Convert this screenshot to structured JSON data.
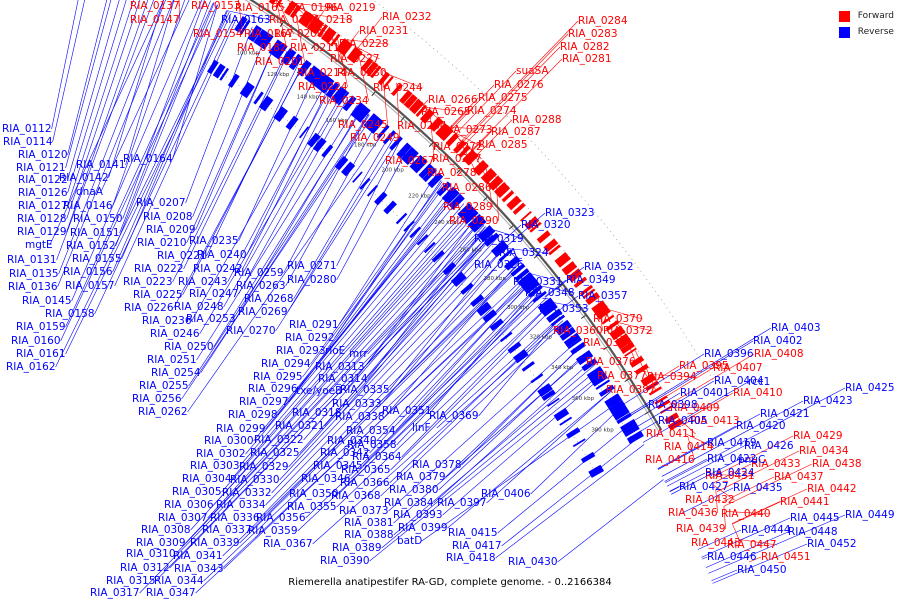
{
  "caption": "Riemerella anatipestifer RA-GD, complete genome. - 0..2166384",
  "legend": [
    {
      "label": "Forward",
      "color": "#ff0000"
    },
    {
      "label": "Reverse",
      "color": "#0000ff"
    }
  ],
  "ticks": [
    "100 kbp",
    "120 kbp",
    "140 kbp",
    "160 kbp",
    "180 kbp",
    "200 kbp",
    "220 kbp",
    "240 kbp",
    "260 kbp",
    "280 kbp",
    "300 kbp",
    "320 kbp",
    "340 kbp",
    "360 kbp",
    "380 kbp"
  ],
  "labels": [
    {
      "t": "RIA_0137",
      "s": "f"
    },
    {
      "t": "RIA_0147",
      "s": "f"
    },
    {
      "t": "RIA_0153",
      "s": "f"
    },
    {
      "t": "RIA_0154",
      "s": "f"
    },
    {
      "t": "RIA_0163",
      "s": "r"
    },
    {
      "t": "RIA_0165",
      "s": "f"
    },
    {
      "t": "RIA_0167",
      "s": "f"
    },
    {
      "t": "RIA_0182",
      "s": "f"
    },
    {
      "t": "RIA_0194",
      "s": "f"
    },
    {
      "t": "RIA_0196",
      "s": "f"
    },
    {
      "t": "RIA_0200",
      "s": "f"
    },
    {
      "t": "RIA_0201",
      "s": "f"
    },
    {
      "t": "RIA_0211",
      "s": "f"
    },
    {
      "t": "RIA_0214",
      "s": "f"
    },
    {
      "t": "RIA_0218",
      "s": "f"
    },
    {
      "t": "RIA_0219",
      "s": "f"
    },
    {
      "t": "RIA_0224",
      "s": "f"
    },
    {
      "t": "RIA_0227",
      "s": "f"
    },
    {
      "t": "RIA_0228",
      "s": "f"
    },
    {
      "t": "RIA_0230",
      "s": "f"
    },
    {
      "t": "RIA_0231",
      "s": "f"
    },
    {
      "t": "RIA_0232",
      "s": "f"
    },
    {
      "t": "RIA_0234",
      "s": "f"
    },
    {
      "t": "RIA_0244",
      "s": "f"
    },
    {
      "t": "RIA_0245",
      "s": "f"
    },
    {
      "t": "RIA_0249",
      "s": "f"
    },
    {
      "t": "RIA_0264",
      "s": "f"
    },
    {
      "t": "RIA_0265",
      "s": "f"
    },
    {
      "t": "RIA_0266",
      "s": "f"
    },
    {
      "t": "RIA_0267",
      "s": "f"
    },
    {
      "t": "RIA_0272",
      "s": "f"
    },
    {
      "t": "RIA_0273",
      "s": "f"
    },
    {
      "t": "RIA_0274",
      "s": "f"
    },
    {
      "t": "RIA_0275",
      "s": "f"
    },
    {
      "t": "RIA_0276",
      "s": "f"
    },
    {
      "t": "RIA_0277",
      "s": "f"
    },
    {
      "t": "RIA_0278",
      "s": "f"
    },
    {
      "t": "RIA_0281",
      "s": "f"
    },
    {
      "t": "RIA_0282",
      "s": "f"
    },
    {
      "t": "RIA_0283",
      "s": "f"
    },
    {
      "t": "RIA_0284",
      "s": "f"
    },
    {
      "t": "RIA_0285",
      "s": "f"
    },
    {
      "t": "RIA_0286",
      "s": "f"
    },
    {
      "t": "RIA_0287",
      "s": "f"
    },
    {
      "t": "RIA_0288",
      "s": "f"
    },
    {
      "t": "RIA_0289",
      "s": "f"
    },
    {
      "t": "RIA_0290",
      "s": "f"
    },
    {
      "t": "suaSA",
      "s": "f"
    },
    {
      "t": "RIA_0112",
      "s": "r"
    },
    {
      "t": "RIA_0114",
      "s": "r"
    },
    {
      "t": "RIA_0120",
      "s": "r"
    },
    {
      "t": "RIA_0121",
      "s": "r"
    },
    {
      "t": "RIA_0122",
      "s": "r"
    },
    {
      "t": "RIA_0126",
      "s": "r"
    },
    {
      "t": "RIA_0127",
      "s": "r"
    },
    {
      "t": "RIA_0128",
      "s": "r"
    },
    {
      "t": "RIA_0129",
      "s": "r"
    },
    {
      "t": "mgtE",
      "s": "r"
    },
    {
      "t": "RIA_0131",
      "s": "r"
    },
    {
      "t": "RIA_0135",
      "s": "r"
    },
    {
      "t": "RIA_0136",
      "s": "r"
    },
    {
      "t": "RIA_0145",
      "s": "r"
    },
    {
      "t": "RIA_0158",
      "s": "r"
    },
    {
      "t": "RIA_0159",
      "s": "r"
    },
    {
      "t": "RIA_0160",
      "s": "r"
    },
    {
      "t": "RIA_0161",
      "s": "r"
    },
    {
      "t": "RIA_0162",
      "s": "r"
    },
    {
      "t": "RIA_0141",
      "s": "r"
    },
    {
      "t": "RIA_0142",
      "s": "r"
    },
    {
      "t": "dnaA",
      "s": "r"
    },
    {
      "t": "RIA_0146",
      "s": "r"
    },
    {
      "t": "RIA_0150",
      "s": "r"
    },
    {
      "t": "RIA_0151",
      "s": "r"
    },
    {
      "t": "RIA_0152",
      "s": "r"
    },
    {
      "t": "RIA_0155",
      "s": "r"
    },
    {
      "t": "RIA_0156",
      "s": "r"
    },
    {
      "t": "RIA_0157",
      "s": "r"
    },
    {
      "t": "RIA_0164",
      "s": "r"
    },
    {
      "t": "RIA_0207",
      "s": "r"
    },
    {
      "t": "RIA_0208",
      "s": "r"
    },
    {
      "t": "RIA_0209",
      "s": "r"
    },
    {
      "t": "RIA_0210",
      "s": "r"
    },
    {
      "t": "RIA_0221",
      "s": "r"
    },
    {
      "t": "RIA_0222",
      "s": "r"
    },
    {
      "t": "RIA_0223",
      "s": "r"
    },
    {
      "t": "RIA_0225",
      "s": "r"
    },
    {
      "t": "RIA_0226",
      "s": "r"
    },
    {
      "t": "RIA_0236",
      "s": "r"
    },
    {
      "t": "RIA_0246",
      "s": "r"
    },
    {
      "t": "RIA_0250",
      "s": "r"
    },
    {
      "t": "RIA_0251",
      "s": "r"
    },
    {
      "t": "RIA_0254",
      "s": "r"
    },
    {
      "t": "RIA_0255",
      "s": "r"
    },
    {
      "t": "RIA_0256",
      "s": "r"
    },
    {
      "t": "RIA_0262",
      "s": "r"
    },
    {
      "t": "RIA_0235",
      "s": "r"
    },
    {
      "t": "RIA_0240",
      "s": "r"
    },
    {
      "t": "RIA_0242",
      "s": "r"
    },
    {
      "t": "RIA_0243",
      "s": "r"
    },
    {
      "t": "RIA_0247",
      "s": "r"
    },
    {
      "t": "RIA_0248",
      "s": "r"
    },
    {
      "t": "RIA_0253",
      "s": "r"
    },
    {
      "t": "RIA_0259",
      "s": "r"
    },
    {
      "t": "RIA_0263",
      "s": "r"
    },
    {
      "t": "RIA_0268",
      "s": "r"
    },
    {
      "t": "RIA_0269",
      "s": "r"
    },
    {
      "t": "RIA_0270",
      "s": "r"
    },
    {
      "t": "RIA_0271",
      "s": "r"
    },
    {
      "t": "RIA_0280",
      "s": "r"
    },
    {
      "t": "RIA_0291",
      "s": "r"
    },
    {
      "t": "RIA_0292",
      "s": "r"
    },
    {
      "t": "RIA_0293",
      "s": "r"
    },
    {
      "t": "rloE",
      "s": "r"
    },
    {
      "t": "mrr",
      "s": "r"
    },
    {
      "t": "RIA_0294",
      "s": "r"
    },
    {
      "t": "RIA_0313",
      "s": "r"
    },
    {
      "t": "RIA_0295",
      "s": "r"
    },
    {
      "t": "RIA_0314",
      "s": "r"
    },
    {
      "t": "RIA_0296",
      "s": "r"
    },
    {
      "t": "txe/yoeB",
      "s": "r"
    },
    {
      "t": "RIA_0335",
      "s": "r"
    },
    {
      "t": "RIA_0297",
      "s": "r"
    },
    {
      "t": "RIA_0333",
      "s": "r"
    },
    {
      "t": "RIA_0351",
      "s": "r"
    },
    {
      "t": "RIA_0298",
      "s": "r"
    },
    {
      "t": "RIA_0318",
      "s": "r"
    },
    {
      "t": "RIA_0338",
      "s": "r"
    },
    {
      "t": "RIA_0299",
      "s": "r"
    },
    {
      "t": "RIA_0321",
      "s": "r"
    },
    {
      "t": "RIA_0354",
      "s": "r"
    },
    {
      "t": "RIA_0369",
      "s": "r"
    },
    {
      "t": "RIA_0300",
      "s": "r"
    },
    {
      "t": "RIA_0322",
      "s": "r"
    },
    {
      "t": "RIA_0340",
      "s": "r"
    },
    {
      "t": "RIA_0358",
      "s": "r"
    },
    {
      "t": "linF",
      "s": "r"
    },
    {
      "t": "RIA_0302",
      "s": "r"
    },
    {
      "t": "RIA_0325",
      "s": "r"
    },
    {
      "t": "RIA_0342",
      "s": "r"
    },
    {
      "t": "RIA_0364",
      "s": "r"
    },
    {
      "t": "RIA_0303",
      "s": "r"
    },
    {
      "t": "RIA_0329",
      "s": "r"
    },
    {
      "t": "RIA_0345",
      "s": "r"
    },
    {
      "t": "RIA_0365",
      "s": "r"
    },
    {
      "t": "RIA_0378",
      "s": "r"
    },
    {
      "t": "RIA_0304",
      "s": "r"
    },
    {
      "t": "RIA_0330",
      "s": "r"
    },
    {
      "t": "RIA_0346",
      "s": "r"
    },
    {
      "t": "RIA_0366",
      "s": "r"
    },
    {
      "t": "RIA_0379",
      "s": "r"
    },
    {
      "t": "RIA_0305",
      "s": "r"
    },
    {
      "t": "RIA_0332",
      "s": "r"
    },
    {
      "t": "RIA_0350",
      "s": "r"
    },
    {
      "t": "RIA_0368",
      "s": "r"
    },
    {
      "t": "RIA_0380",
      "s": "r"
    },
    {
      "t": "RIA_0306",
      "s": "r"
    },
    {
      "t": "RIA_0334",
      "s": "r"
    },
    {
      "t": "RIA_0355",
      "s": "r"
    },
    {
      "t": "RIA_0384",
      "s": "r"
    },
    {
      "t": "RIA_0397",
      "s": "r"
    },
    {
      "t": "RIA_0307",
      "s": "r"
    },
    {
      "t": "RIA_0336",
      "s": "r"
    },
    {
      "t": "RIA_0356",
      "s": "r"
    },
    {
      "t": "RIA_0373",
      "s": "r"
    },
    {
      "t": "RIA_0393",
      "s": "r"
    },
    {
      "t": "RIA_0308",
      "s": "r"
    },
    {
      "t": "RIA_0337",
      "s": "r"
    },
    {
      "t": "RIA_0359",
      "s": "r"
    },
    {
      "t": "RIA_0381",
      "s": "r"
    },
    {
      "t": "RIA_0399",
      "s": "r"
    },
    {
      "t": "RIA_0309",
      "s": "r"
    },
    {
      "t": "RIA_0339",
      "s": "r"
    },
    {
      "t": "RIA_0388",
      "s": "r"
    },
    {
      "t": "RIA_0310",
      "s": "r"
    },
    {
      "t": "RIA_0341",
      "s": "r"
    },
    {
      "t": "RIA_0367",
      "s": "r"
    },
    {
      "t": "RIA_0389",
      "s": "r"
    },
    {
      "t": "batD",
      "s": "r"
    },
    {
      "t": "RIA_0312",
      "s": "r"
    },
    {
      "t": "RIA_0343",
      "s": "r"
    },
    {
      "t": "RIA_0390",
      "s": "r"
    },
    {
      "t": "RIA_0315",
      "s": "r"
    },
    {
      "t": "RIA_0344",
      "s": "r"
    },
    {
      "t": "RIA_0317",
      "s": "r"
    },
    {
      "t": "RIA_0347",
      "s": "r"
    },
    {
      "t": "RIA_0323",
      "s": "r"
    },
    {
      "t": "RIA_0320",
      "s": "r"
    },
    {
      "t": "RIA_0319",
      "s": "r"
    },
    {
      "t": "RIA_0324",
      "s": "r"
    },
    {
      "t": "RIA_0326",
      "s": "r"
    },
    {
      "t": "RIA_0352",
      "s": "r"
    },
    {
      "t": "RIA_0331",
      "s": "r"
    },
    {
      "t": "RIA_0349",
      "s": "r"
    },
    {
      "t": "RIA_0348",
      "s": "r"
    },
    {
      "t": "RIA_0357",
      "s": "r"
    },
    {
      "t": "RIA_0353",
      "s": "r"
    },
    {
      "t": "RIA_0406",
      "s": "r"
    },
    {
      "t": "RIA_0415",
      "s": "r"
    },
    {
      "t": "RIA_0417",
      "s": "r"
    },
    {
      "t": "RIA_0418",
      "s": "r"
    },
    {
      "t": "RIA_0430",
      "s": "r"
    },
    {
      "t": "RIA_0370",
      "s": "f"
    },
    {
      "t": "RIA_0360",
      "s": "f"
    },
    {
      "t": "RIA_0372",
      "s": "f"
    },
    {
      "t": "RIA_0371",
      "s": "f"
    },
    {
      "t": "RIA_0376",
      "s": "f"
    },
    {
      "t": "RIA_0377",
      "s": "f"
    },
    {
      "t": "RIA_0387",
      "s": "f"
    },
    {
      "t": "RIA_0394",
      "s": "f"
    },
    {
      "t": "RIA_0395",
      "s": "f"
    },
    {
      "t": "RIA_0407",
      "s": "f"
    },
    {
      "t": "RIA_0408",
      "s": "f"
    },
    {
      "t": "RIA_0409",
      "s": "f"
    },
    {
      "t": "RIA_0410",
      "s": "f"
    },
    {
      "t": "RIA_0411",
      "s": "f"
    },
    {
      "t": "RIA_0413",
      "s": "f"
    },
    {
      "t": "RIA_0414",
      "s": "f"
    },
    {
      "t": "RIA_0416",
      "s": "f"
    },
    {
      "t": "RIA_0429",
      "s": "f"
    },
    {
      "t": "RIA_0434",
      "s": "f"
    },
    {
      "t": "RIA_0433",
      "s": "f"
    },
    {
      "t": "RIA_0438",
      "s": "f"
    },
    {
      "t": "RIA_0431",
      "s": "f"
    },
    {
      "t": "RIA_0437",
      "s": "f"
    },
    {
      "t": "RIA_0442",
      "s": "f"
    },
    {
      "t": "RIA_0432",
      "s": "f"
    },
    {
      "t": "RIA_0441",
      "s": "f"
    },
    {
      "t": "RIA_0436",
      "s": "f"
    },
    {
      "t": "RIA_0440",
      "s": "f"
    },
    {
      "t": "RIA_0439",
      "s": "f"
    },
    {
      "t": "RIA_0443",
      "s": "f"
    },
    {
      "t": "RIA_0447",
      "s": "f"
    },
    {
      "t": "RIA_0451",
      "s": "f"
    },
    {
      "t": "RIA_0403",
      "s": "r"
    },
    {
      "t": "RIA_0402",
      "s": "r"
    },
    {
      "t": "RIA_0396",
      "s": "r"
    },
    {
      "t": "RIA_0404",
      "s": "r"
    },
    {
      "t": "rcc1",
      "s": "r"
    },
    {
      "t": "RIA_0401",
      "s": "r"
    },
    {
      "t": "RIA_0398",
      "s": "r"
    },
    {
      "t": "RIA_0405",
      "s": "r"
    },
    {
      "t": "RIA_0419",
      "s": "r"
    },
    {
      "t": "RIA_0420",
      "s": "r"
    },
    {
      "t": "RIA_0421",
      "s": "r"
    },
    {
      "t": "RIA_0423",
      "s": "r"
    },
    {
      "t": "RIA_0425",
      "s": "r"
    },
    {
      "t": "RIA_0422",
      "s": "r"
    },
    {
      "t": "RIA_0426",
      "s": "r"
    },
    {
      "t": "pnuC",
      "s": "r"
    },
    {
      "t": "RIA_0424",
      "s": "r"
    },
    {
      "t": "RIA_0435",
      "s": "r"
    },
    {
      "t": "RIA_0427",
      "s": "r"
    },
    {
      "t": "RIA_0444",
      "s": "r"
    },
    {
      "t": "RIA_0445",
      "s": "r"
    },
    {
      "t": "RIA_0448",
      "s": "r"
    },
    {
      "t": "RIA_0449",
      "s": "r"
    },
    {
      "t": "RIA_0452",
      "s": "r"
    },
    {
      "t": "RIA_0446",
      "s": "r"
    },
    {
      "t": "RIA_0450",
      "s": "r"
    }
  ]
}
